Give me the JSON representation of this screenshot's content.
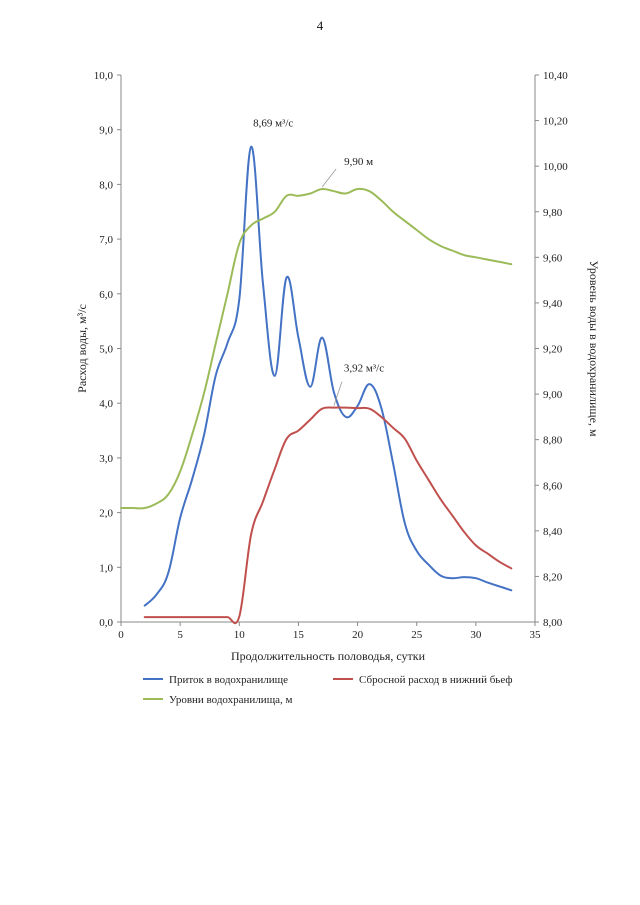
{
  "page_number": "4",
  "chart_data": {
    "type": "line",
    "title": "",
    "xlabel": "Продолжительность половодья, сутки",
    "ylabel": "Расход воды, м³/с",
    "y2label": "Уровень воды в водохранилище, м",
    "xlim": [
      0,
      35
    ],
    "ylim": [
      0,
      10
    ],
    "y2lim": [
      8.0,
      10.4
    ],
    "x_ticks": [
      "0",
      "5",
      "10",
      "15",
      "20",
      "25",
      "30",
      "35"
    ],
    "y_ticks": [
      "0,0",
      "1,0",
      "2,0",
      "3,0",
      "4,0",
      "5,0",
      "6,0",
      "7,0",
      "8,0",
      "9,0",
      "10,0"
    ],
    "y2_ticks": [
      "8,00",
      "8,20",
      "8,40",
      "8,60",
      "8,80",
      "9,00",
      "9,20",
      "9,40",
      "9,60",
      "9,80",
      "10,00",
      "10,20",
      "10,40"
    ],
    "grid": false,
    "legend_position": "bottom",
    "series": [
      {
        "name": "Приток в водохранилище",
        "color": "#4472C4",
        "axis": "left",
        "x": [
          2,
          3,
          4,
          5,
          6,
          7,
          8,
          9,
          10,
          11,
          12,
          13,
          14,
          15,
          16,
          17,
          18,
          19,
          20,
          21,
          22,
          23,
          24,
          25,
          26,
          27,
          28,
          29,
          30,
          31,
          32,
          33
        ],
        "values": [
          0.3,
          0.5,
          0.9,
          1.9,
          2.6,
          3.4,
          4.5,
          5.1,
          5.9,
          8.69,
          6.2,
          4.5,
          6.3,
          5.2,
          4.3,
          5.2,
          4.2,
          3.75,
          3.95,
          4.35,
          3.92,
          2.9,
          1.8,
          1.3,
          1.05,
          0.85,
          0.8,
          0.82,
          0.8,
          0.72,
          0.65,
          0.58
        ]
      },
      {
        "name": "Сбросной расход в нижний бьеф",
        "color": "#C0504D",
        "axis": "left",
        "x": [
          2,
          3,
          4,
          5,
          6,
          7,
          8,
          9,
          10,
          11,
          12,
          13,
          14,
          15,
          16,
          17,
          18,
          19,
          20,
          21,
          22,
          23,
          24,
          25,
          26,
          27,
          28,
          29,
          30,
          31,
          32,
          33
        ],
        "values": [
          0.09,
          0.09,
          0.09,
          0.09,
          0.09,
          0.09,
          0.09,
          0.09,
          0.1,
          1.6,
          2.2,
          2.8,
          3.35,
          3.5,
          3.7,
          3.9,
          3.92,
          3.92,
          3.91,
          3.9,
          3.75,
          3.55,
          3.35,
          2.95,
          2.6,
          2.25,
          1.95,
          1.65,
          1.4,
          1.25,
          1.1,
          0.98
        ]
      },
      {
        "name": "Уровни водохранилища, м",
        "color": "#9BBB59",
        "axis": "right",
        "x": [
          0,
          1,
          2,
          3,
          4,
          5,
          6,
          7,
          8,
          9,
          10,
          11,
          12,
          13,
          14,
          15,
          16,
          17,
          18,
          19,
          20,
          21,
          22,
          23,
          24,
          25,
          26,
          27,
          28,
          29,
          30,
          31,
          32,
          33
        ],
        "values": [
          8.5,
          8.5,
          8.5,
          8.52,
          8.56,
          8.66,
          8.82,
          9.0,
          9.22,
          9.44,
          9.66,
          9.74,
          9.77,
          9.8,
          9.87,
          9.87,
          9.88,
          9.9,
          9.89,
          9.88,
          9.9,
          9.89,
          9.85,
          9.8,
          9.76,
          9.72,
          9.68,
          9.65,
          9.63,
          9.61,
          9.6,
          9.59,
          9.58,
          9.57
        ]
      }
    ],
    "annotations": [
      {
        "text": "8,69 м³/с",
        "series": 0,
        "x": 11,
        "y": 8.69
      },
      {
        "text": "9,90 м",
        "series": 2,
        "x": 17,
        "y": 9.9
      },
      {
        "text": "3,92 м³/с",
        "series": 1,
        "x": 18,
        "y": 3.92
      }
    ]
  }
}
